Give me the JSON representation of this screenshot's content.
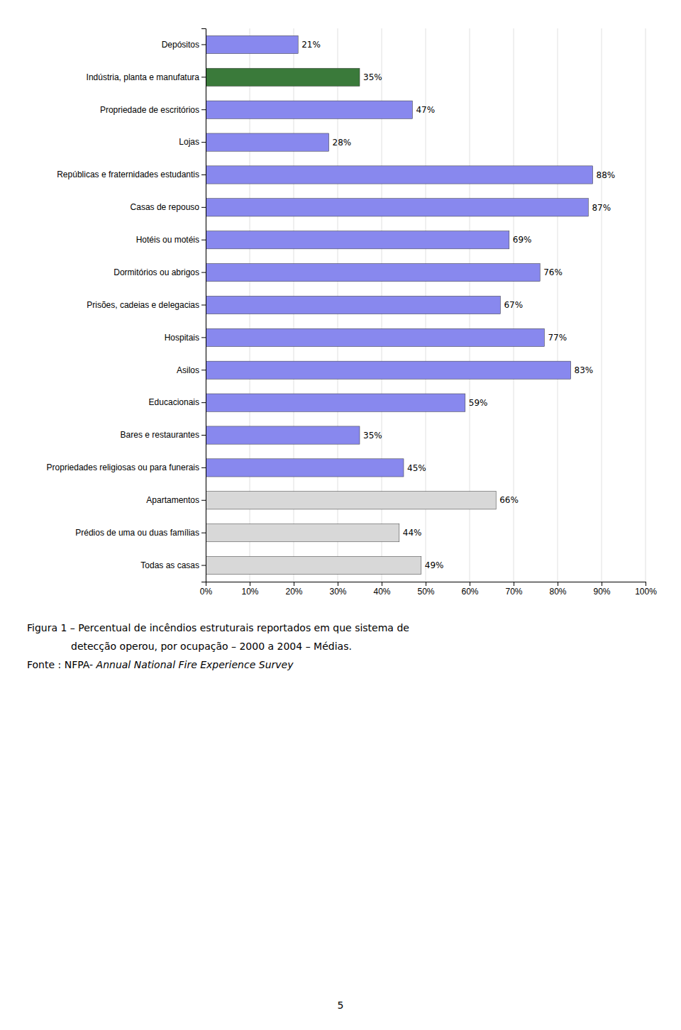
{
  "chart_data": {
    "type": "bar",
    "orientation": "horizontal",
    "categories": [
      "Depósitos",
      "Indústria, planta e manufatura",
      "Propriedade de escritórios",
      "Lojas",
      "Repúblicas e fraternidades estudantis",
      "Casas de repouso",
      "Hotéis ou motéis",
      "Dormitórios ou abrigos",
      "Prisões, cadeias e delegacias",
      "Hospitais",
      "Asilos",
      "Educacionais",
      "Bares e restaurantes",
      "Propriedades religiosas ou para funerais",
      "Apartamentos",
      "Prédios de uma ou duas famílias",
      "Todas as casas"
    ],
    "values": [
      21,
      35,
      47,
      28,
      88,
      87,
      69,
      76,
      67,
      77,
      83,
      59,
      35,
      45,
      66,
      44,
      49
    ],
    "value_labels": [
      "21%",
      "35%",
      "47%",
      "28%",
      "88%",
      "87%",
      "69%",
      "76%",
      "67%",
      "77%",
      "83%",
      "59%",
      "35%",
      "45%",
      "66%",
      "44%",
      "49%"
    ],
    "data_labels": true,
    "colors": [
      "#8888EE",
      "#3A7A3A",
      "#8888EE",
      "#8888EE",
      "#8888EE",
      "#8888EE",
      "#8888EE",
      "#8888EE",
      "#8888EE",
      "#8888EE",
      "#8888EE",
      "#8888EE",
      "#8888EE",
      "#8888EE",
      "#D8D8D8",
      "#D8D8D8",
      "#D8D8D8"
    ],
    "xlim": [
      0,
      100
    ],
    "xticks": [
      {
        "value": 0,
        "label": "0%"
      },
      {
        "value": 10,
        "label": "10%"
      },
      {
        "value": 20,
        "label": "20%"
      },
      {
        "value": 30,
        "label": "30%"
      },
      {
        "value": 40,
        "label": "40%"
      },
      {
        "value": 50,
        "label": "50%"
      },
      {
        "value": 60,
        "label": "60%"
      },
      {
        "value": 70,
        "label": "70%"
      },
      {
        "value": 80,
        "label": "80%"
      },
      {
        "value": 90,
        "label": "90%"
      },
      {
        "value": 100,
        "label": "100%"
      }
    ],
    "grid": true,
    "annotations": [
      "Figura 1 – Percentual de incêndios estruturais reportados em que sistema de",
      "detecção operou, por ocupação – 2000 a 2004 – Médias.",
      "Fonte : NFPA- ",
      "Annual National Fire Experience Survey",
      "5"
    ]
  }
}
